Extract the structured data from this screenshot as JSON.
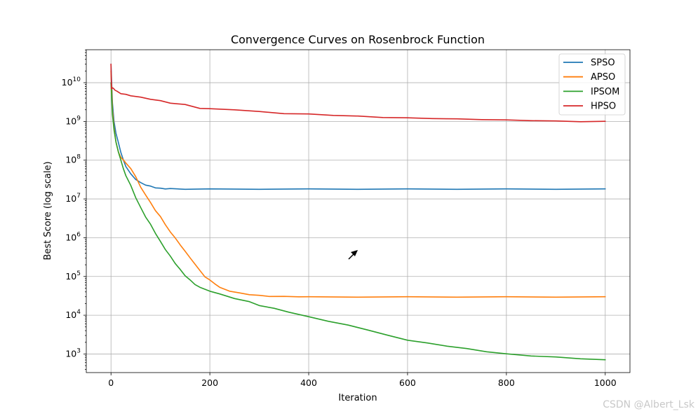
{
  "chart_data": {
    "type": "line",
    "title": "Convergence Curves on Rosenbrock Function",
    "xlabel": "Iteration",
    "ylabel": "Best Score (log scale)",
    "yscale": "log",
    "xlim": [
      -50,
      1050
    ],
    "ylim_log10": [
      2.52,
      10.85
    ],
    "grid": true,
    "legend_position": "top-right",
    "x_ticks": [
      0,
      200,
      400,
      600,
      800,
      1000
    ],
    "y_ticks_exp": [
      3,
      4,
      5,
      6,
      7,
      8,
      9,
      10
    ],
    "series": [
      {
        "name": "SPSO",
        "color": "#1f77b4",
        "x": [
          0,
          3,
          6,
          10,
          15,
          20,
          25,
          30,
          40,
          50,
          60,
          70,
          80,
          90,
          100,
          110,
          120,
          150,
          200,
          300,
          400,
          500,
          600,
          700,
          800,
          900,
          1000
        ],
        "y": [
          30000000000.0,
          3000000000.0,
          1000000000.0,
          500000000.0,
          280000000.0,
          160000000.0,
          100000000.0,
          70000000.0,
          44000000.0,
          32000000.0,
          26000000.0,
          23000000.0,
          21000000.0,
          19500000.0,
          18800000.0,
          18400000.0,
          18200000.0,
          18000000.0,
          17900000.0,
          17800000.0,
          17800000.0,
          17800000.0,
          17800000.0,
          17800000.0,
          17800000.0,
          17800000.0,
          17800000.0
        ]
      },
      {
        "name": "APSO",
        "color": "#ff7f0e",
        "x": [
          0,
          3,
          6,
          10,
          15,
          20,
          25,
          30,
          40,
          50,
          60,
          70,
          80,
          90,
          100,
          110,
          120,
          130,
          140,
          150,
          160,
          170,
          180,
          190,
          200,
          210,
          220,
          240,
          260,
          280,
          300,
          320,
          350,
          380,
          400,
          500,
          600,
          700,
          800,
          900,
          1000
        ],
        "y": [
          20000000000.0,
          2000000000.0,
          700000000.0,
          300000000.0,
          160000000.0,
          120000000.0,
          100000000.0,
          85000000.0,
          60000000.0,
          38000000.0,
          20000000.0,
          13000000.0,
          8000000.0,
          5000000.0,
          3500000.0,
          2200000.0,
          1400000.0,
          1000000.0,
          650000.0,
          450000.0,
          300000.0,
          210000.0,
          140000.0,
          100000.0,
          80000.0,
          65000.0,
          52000.0,
          42000.0,
          37000.0,
          34000.0,
          32000.0,
          31000.0,
          30500.0,
          30000.0,
          29800.0,
          29700.0,
          29700.0,
          29700.0,
          29700.0,
          29700.0,
          29700.0
        ]
      },
      {
        "name": "IPSOM",
        "color": "#2ca02c",
        "x": [
          0,
          3,
          6,
          10,
          15,
          20,
          25,
          30,
          40,
          50,
          60,
          70,
          80,
          90,
          100,
          110,
          120,
          130,
          140,
          150,
          160,
          170,
          180,
          200,
          220,
          250,
          280,
          300,
          330,
          360,
          400,
          440,
          480,
          520,
          560,
          600,
          640,
          680,
          720,
          760,
          800,
          850,
          900,
          950,
          1000
        ],
        "y": [
          10000000000.0,
          1500000000.0,
          600000000.0,
          300000000.0,
          160000000.0,
          100000000.0,
          60000000.0,
          40000000.0,
          22000000.0,
          11000000.0,
          6000000.0,
          3500000.0,
          2200000.0,
          1300000.0,
          800000.0,
          500000.0,
          330000.0,
          220000.0,
          150000.0,
          105000.0,
          80000.0,
          63000.0,
          52000.0,
          42000.0,
          35000.0,
          27000.0,
          22000.0,
          18000.0,
          15000.0,
          12000.0,
          9000.0,
          7000.0,
          5500.0,
          4200.0,
          3000.0,
          2300.0,
          1900.0,
          1600.0,
          1350.0,
          1150.0,
          1000.0,
          900,
          820,
          760,
          700
        ]
      },
      {
        "name": "HPSO",
        "color": "#d62728",
        "x": [
          0,
          1,
          2,
          3,
          5,
          8,
          12,
          20,
          30,
          40,
          60,
          80,
          100,
          120,
          150,
          180,
          200,
          250,
          300,
          350,
          400,
          450,
          500,
          550,
          600,
          650,
          700,
          750,
          800,
          850,
          900,
          950,
          1000
        ],
        "y": [
          30000000000.0,
          7000000000.0,
          7000000000.0,
          7500000000.0,
          7000000000.0,
          6500000000.0,
          6000000000.0,
          5300000000.0,
          4900000000.0,
          4600000000.0,
          4200000000.0,
          3800000000.0,
          3400000000.0,
          3000000000.0,
          2700000000.0,
          2200000000.0,
          2100000000.0,
          2000000000.0,
          1800000000.0,
          1600000000.0,
          1550000000.0,
          1450000000.0,
          1350000000.0,
          1280000000.0,
          1220000000.0,
          1200000000.0,
          1150000000.0,
          1120000000.0,
          1080000000.0,
          1050000000.0,
          1020000000.0,
          1000000000.0,
          1000000000.0
        ]
      }
    ]
  },
  "watermark": "CSDN @Albert_Lsk"
}
